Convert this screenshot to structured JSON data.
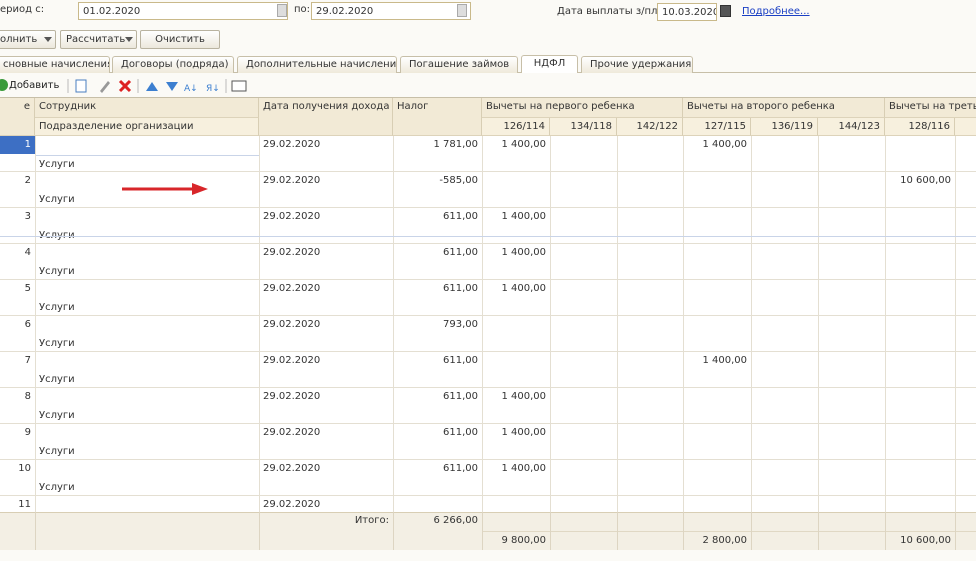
{
  "header": {
    "period_label": "ериод с:",
    "date_from": "01.02.2020",
    "to_label": "по:",
    "date_to": "29.02.2020",
    "pay_label": "Дата выплаты з/пл:",
    "pay_date": "10.03.2020",
    "more_link": "Подробнее..."
  },
  "buttons": [
    "олнить",
    "Рассчитать",
    "Очистить"
  ],
  "tabs": [
    "сновные начисления",
    "Договоры (подряда)",
    "Дополнительные начисления",
    "Погашение займов",
    "НДФЛ",
    "Прочие удержания"
  ],
  "active_tab": 4,
  "toolbar": {
    "add": "Добавить"
  },
  "table": {
    "columns": [
      "е",
      "Сотрудник",
      "Дата получения дохода",
      "Налог"
    ],
    "subheader_label": "Подразделение организации",
    "groups": [
      "Вычеты на первого ребенка",
      "Вычеты на второго ребенка",
      "Вычеты на треть"
    ],
    "subcolumns": [
      "126/114",
      "134/118",
      "142/122",
      "127/115",
      "136/119",
      "144/123",
      "128/116",
      "13"
    ],
    "rows": [
      {
        "num": "1",
        "department": "Услуги",
        "date": "29.02.2020",
        "tax": "1 781,00",
        "deductions": [
          "1 400,00",
          null,
          null,
          "1 400,00",
          null,
          null,
          null,
          null
        ]
      },
      {
        "num": "2",
        "department": "Услуги",
        "date": "29.02.2020",
        "tax": "-585,00",
        "deductions": [
          null,
          null,
          null,
          null,
          null,
          null,
          "10 600,00",
          null
        ]
      },
      {
        "num": "3",
        "department": "Услуги",
        "date": "29.02.2020",
        "tax": "611,00",
        "deductions": [
          "1 400,00",
          null,
          null,
          null,
          null,
          null,
          null,
          null
        ]
      },
      {
        "num": "4",
        "department": "Услуги",
        "date": "29.02.2020",
        "tax": "611,00",
        "deductions": [
          "1 400,00",
          null,
          null,
          null,
          null,
          null,
          null,
          null
        ]
      },
      {
        "num": "5",
        "department": "Услуги",
        "date": "29.02.2020",
        "tax": "611,00",
        "deductions": [
          "1 400,00",
          null,
          null,
          null,
          null,
          null,
          null,
          null
        ]
      },
      {
        "num": "6",
        "department": "Услуги",
        "date": "29.02.2020",
        "tax": "793,00",
        "deductions": [
          null,
          null,
          null,
          null,
          null,
          null,
          null,
          null
        ]
      },
      {
        "num": "7",
        "department": "Услуги",
        "date": "29.02.2020",
        "tax": "611,00",
        "deductions": [
          null,
          null,
          null,
          "1 400,00",
          null,
          null,
          null,
          null
        ]
      },
      {
        "num": "8",
        "department": "Услуги",
        "date": "29.02.2020",
        "tax": "611,00",
        "deductions": [
          "1 400,00",
          null,
          null,
          null,
          null,
          null,
          null,
          null
        ]
      },
      {
        "num": "9",
        "department": "Услуги",
        "date": "29.02.2020",
        "tax": "611,00",
        "deductions": [
          "1 400,00",
          null,
          null,
          null,
          null,
          null,
          null,
          null
        ]
      },
      {
        "num": "10",
        "department": "Услуги",
        "date": "29.02.2020",
        "tax": "611,00",
        "deductions": [
          "1 400,00",
          null,
          null,
          null,
          null,
          null,
          null,
          null
        ]
      },
      {
        "num": "11",
        "date": "29.02.2020",
        "deductions": [
          null,
          null,
          null,
          null,
          null,
          null,
          null,
          null
        ]
      }
    ],
    "footer": {
      "total_label": "Итого:",
      "tax_total": "6 266,00",
      "deduction_totals": [
        "9 800,00",
        null,
        null,
        "2 800,00",
        null,
        null,
        "10 600,00",
        null
      ]
    }
  }
}
